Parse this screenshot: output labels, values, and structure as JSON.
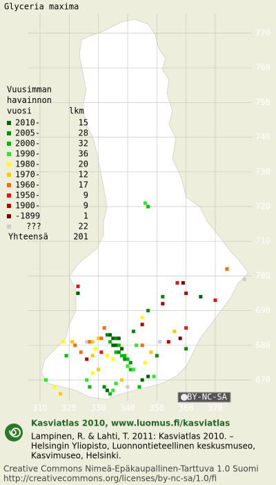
{
  "title": "Glyceria maxima",
  "legend": {
    "heading": [
      "Vuusimman",
      "havainnon",
      "vuosi"
    ],
    "count_heading": "lkm",
    "rows": [
      {
        "label": "2010-",
        "count": 15,
        "color": "#006400"
      },
      {
        "label": "2005-",
        "count": 28,
        "color": "#009000"
      },
      {
        "label": "2000-",
        "count": 32,
        "color": "#00c000"
      },
      {
        "label": "1990-",
        "count": 36,
        "color": "#22ee22"
      },
      {
        "label": "1980-",
        "count": 20,
        "color": "#ffff00"
      },
      {
        "label": "1970-",
        "count": 12,
        "color": "#ffc800"
      },
      {
        "label": "1960-",
        "count": 17,
        "color": "#ff6a00"
      },
      {
        "label": "1950-",
        "count": 9,
        "color": "#ee1111"
      },
      {
        "label": "1900-",
        "count": 9,
        "color": "#c00000"
      },
      {
        "label": "-1899",
        "count": 1,
        "color": "#800000"
      },
      {
        "label": "???",
        "count": 22,
        "color": "#cccccc"
      }
    ],
    "total_label": "Yhteensä",
    "total": 201
  },
  "map": {
    "xticks": [
      310,
      320,
      330,
      340,
      350,
      360,
      370
    ],
    "yticks": [
      770,
      760,
      750,
      740,
      730,
      720,
      710,
      700,
      690,
      680,
      670
    ],
    "points": [
      [
        346,
        721,
        3
      ],
      [
        347,
        720,
        2
      ],
      [
        374,
        702,
        6
      ],
      [
        380,
        699,
        10
      ],
      [
        357,
        698,
        7
      ],
      [
        359,
        698,
        9
      ],
      [
        360,
        695,
        8
      ],
      [
        365,
        694,
        0
      ],
      [
        370,
        693,
        7
      ],
      [
        323,
        697,
        7
      ],
      [
        323,
        695,
        0
      ],
      [
        352,
        694,
        1
      ],
      [
        352,
        692,
        8
      ],
      [
        347,
        690,
        1
      ],
      [
        345,
        688,
        4
      ],
      [
        345,
        686,
        8
      ],
      [
        360,
        685,
        7
      ],
      [
        360,
        679,
        1
      ],
      [
        332,
        685,
        6
      ],
      [
        326,
        681,
        10
      ],
      [
        327,
        681,
        6
      ],
      [
        328,
        681,
        5
      ],
      [
        330,
        682,
        5
      ],
      [
        331,
        682,
        6
      ],
      [
        333,
        683,
        1
      ],
      [
        334,
        683,
        0
      ],
      [
        335,
        682,
        0
      ],
      [
        336,
        682,
        1
      ],
      [
        337,
        682,
        0
      ],
      [
        334,
        681,
        2
      ],
      [
        335,
        680,
        0
      ],
      [
        336,
        680,
        0
      ],
      [
        337,
        680,
        2
      ],
      [
        338,
        679,
        0
      ],
      [
        336,
        678,
        2
      ],
      [
        337,
        678,
        1
      ],
      [
        338,
        677,
        2
      ],
      [
        339,
        677,
        2
      ],
      [
        339,
        676,
        1
      ],
      [
        340,
        676,
        2
      ],
      [
        341,
        675,
        1
      ],
      [
        340,
        674,
        3
      ],
      [
        341,
        673,
        2
      ],
      [
        342,
        673,
        3
      ],
      [
        335,
        676,
        4
      ],
      [
        333,
        677,
        4
      ],
      [
        331,
        678,
        7
      ],
      [
        329,
        679,
        4
      ],
      [
        328,
        677,
        5
      ],
      [
        326,
        676,
        8
      ],
      [
        324,
        678,
        6
      ],
      [
        322,
        680,
        6
      ],
      [
        321,
        681,
        5
      ],
      [
        319,
        677,
        2
      ],
      [
        318,
        681,
        4
      ],
      [
        330,
        673,
        5
      ],
      [
        328,
        672,
        4
      ],
      [
        326,
        670,
        3
      ],
      [
        327,
        668,
        2
      ],
      [
        332,
        668,
        1
      ],
      [
        333,
        667,
        0
      ],
      [
        334,
        666,
        2
      ],
      [
        335,
        667,
        3
      ],
      [
        336,
        669,
        3
      ],
      [
        338,
        670,
        5
      ],
      [
        340,
        668,
        10
      ],
      [
        344,
        668,
        2
      ],
      [
        345,
        670,
        0
      ],
      [
        347,
        671,
        0
      ],
      [
        349,
        671,
        3
      ],
      [
        346,
        675,
        4
      ],
      [
        348,
        678,
        5
      ],
      [
        345,
        680,
        6
      ],
      [
        350,
        677,
        1
      ],
      [
        351,
        681,
        10
      ],
      [
        342,
        684,
        1
      ],
      [
        343,
        680,
        3
      ],
      [
        315,
        668,
        4
      ],
      [
        312,
        670,
        3
      ],
      [
        317,
        666,
        5
      ],
      [
        354,
        681,
        8
      ],
      [
        356,
        684,
        5
      ],
      [
        358,
        682,
        9
      ]
    ]
  },
  "badge": "BY-NC-SA",
  "footer": {
    "site": "Kasviatlas 2010, www.luomus.fi/kasviatlas",
    "citation": [
      "Lampinen, R. & Lahti, T. 2011: Kasviatlas 2010. –",
      "Helsingin Yliopisto, Luonnontieteellinen keskusmuseo,",
      "Kasvimuseo, Helsinki."
    ],
    "license": [
      "Creative Commons Nimeä-Epäkaupallinen-Tarttuva 1.0 Suomi",
      "http://creativecommons.org/licenses/by-nc-sa/1.0/fi"
    ]
  }
}
